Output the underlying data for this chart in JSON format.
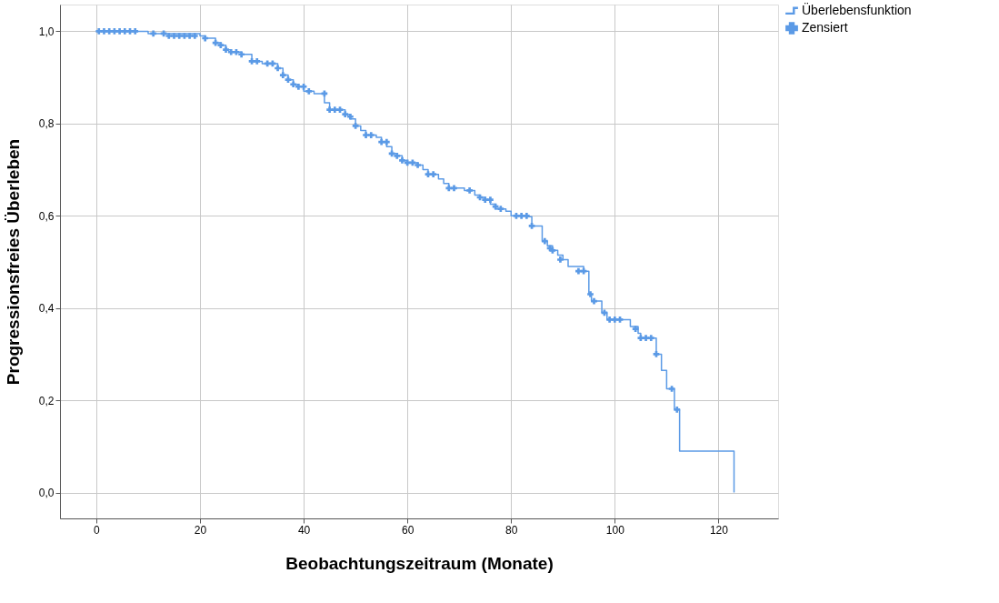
{
  "chart_data": {
    "type": "step",
    "xlabel": "Beobachtungszeitraum (Monate)",
    "ylabel": "Progressionsfreies Überleben",
    "xlim": [
      -7,
      131.5
    ],
    "ylim": [
      -0.056,
      1.058
    ],
    "xticks": [
      0,
      20,
      40,
      60,
      80,
      100,
      120
    ],
    "yticks": [
      {
        "value": 0,
        "label": "0,0"
      },
      {
        "value": 0.2,
        "label": "0,2"
      },
      {
        "value": 0.4,
        "label": "0,4"
      },
      {
        "value": 0.6,
        "label": "0,6"
      },
      {
        "value": 0.8,
        "label": "0,8"
      },
      {
        "value": 1,
        "label": "1,0"
      }
    ],
    "grid": true,
    "legend": "top right",
    "series": [
      {
        "name": "Überlebensfunktion",
        "color": "#5b9ae6",
        "x": [
          0,
          10,
          20,
          21,
          23,
          24,
          25,
          26,
          28,
          30,
          32,
          35,
          36,
          37,
          38,
          39,
          40,
          42,
          44,
          45,
          48,
          49,
          50,
          51,
          52,
          54,
          55,
          56,
          57,
          58,
          59,
          60,
          62,
          63,
          64,
          66,
          67,
          68,
          71,
          73,
          74,
          75,
          76,
          77,
          79,
          80,
          83,
          84,
          86,
          87,
          88,
          89,
          90,
          91,
          94,
          95,
          95.5,
          97.5,
          98.5,
          103,
          104.5,
          105,
          108,
          109,
          110,
          111.5,
          112.5,
          123
        ],
        "values": [
          1,
          0.995,
          0.99,
          0.985,
          0.975,
          0.97,
          0.96,
          0.955,
          0.95,
          0.935,
          0.93,
          0.92,
          0.905,
          0.895,
          0.885,
          0.88,
          0.87,
          0.865,
          0.845,
          0.83,
          0.82,
          0.81,
          0.795,
          0.785,
          0.775,
          0.77,
          0.76,
          0.75,
          0.735,
          0.73,
          0.72,
          0.715,
          0.71,
          0.7,
          0.69,
          0.68,
          0.67,
          0.66,
          0.655,
          0.645,
          0.64,
          0.635,
          0.625,
          0.615,
          0.61,
          0.6,
          0.598,
          0.578,
          0.545,
          0.535,
          0.525,
          0.515,
          0.505,
          0.49,
          0.48,
          0.43,
          0.415,
          0.39,
          0.375,
          0.36,
          0.345,
          0.335,
          0.3,
          0.265,
          0.225,
          0.18,
          0.09,
          0
        ]
      },
      {
        "name": "Zensiert",
        "type": "scatter",
        "marker": "cross",
        "color": "#5b9ae6",
        "x": [
          0.5,
          1.5,
          2.5,
          3.5,
          4.5,
          5.5,
          6.5,
          7.5,
          11,
          13,
          14,
          15,
          16,
          17,
          18,
          19,
          21,
          23,
          24,
          25,
          26,
          27,
          28,
          30,
          31,
          33,
          34,
          35,
          36,
          37,
          38,
          39,
          40,
          41,
          44,
          45,
          46,
          47,
          48,
          49,
          50,
          52,
          53,
          55,
          56,
          57,
          58,
          59,
          60,
          61,
          62,
          64,
          65,
          68,
          69,
          72,
          74,
          75,
          76,
          77,
          78,
          81,
          82,
          83,
          84,
          86.5,
          87.5,
          88,
          89.5,
          93,
          94,
          95.3,
          96,
          98,
          99,
          100,
          101,
          104,
          105,
          106,
          107,
          108,
          111,
          112
        ],
        "values": [
          1,
          1,
          1,
          1,
          1,
          1,
          1,
          1,
          0.995,
          0.995,
          0.99,
          0.99,
          0.99,
          0.99,
          0.99,
          0.99,
          0.985,
          0.975,
          0.97,
          0.96,
          0.955,
          0.955,
          0.95,
          0.935,
          0.935,
          0.93,
          0.93,
          0.92,
          0.905,
          0.895,
          0.885,
          0.88,
          0.88,
          0.87,
          0.865,
          0.83,
          0.83,
          0.83,
          0.82,
          0.815,
          0.795,
          0.775,
          0.775,
          0.76,
          0.76,
          0.735,
          0.73,
          0.72,
          0.715,
          0.715,
          0.71,
          0.69,
          0.69,
          0.66,
          0.66,
          0.655,
          0.64,
          0.635,
          0.635,
          0.62,
          0.615,
          0.6,
          0.6,
          0.6,
          0.578,
          0.545,
          0.53,
          0.525,
          0.505,
          0.48,
          0.48,
          0.43,
          0.415,
          0.39,
          0.375,
          0.375,
          0.375,
          0.355,
          0.335,
          0.335,
          0.335,
          0.3,
          0.225,
          0.18
        ]
      }
    ]
  }
}
